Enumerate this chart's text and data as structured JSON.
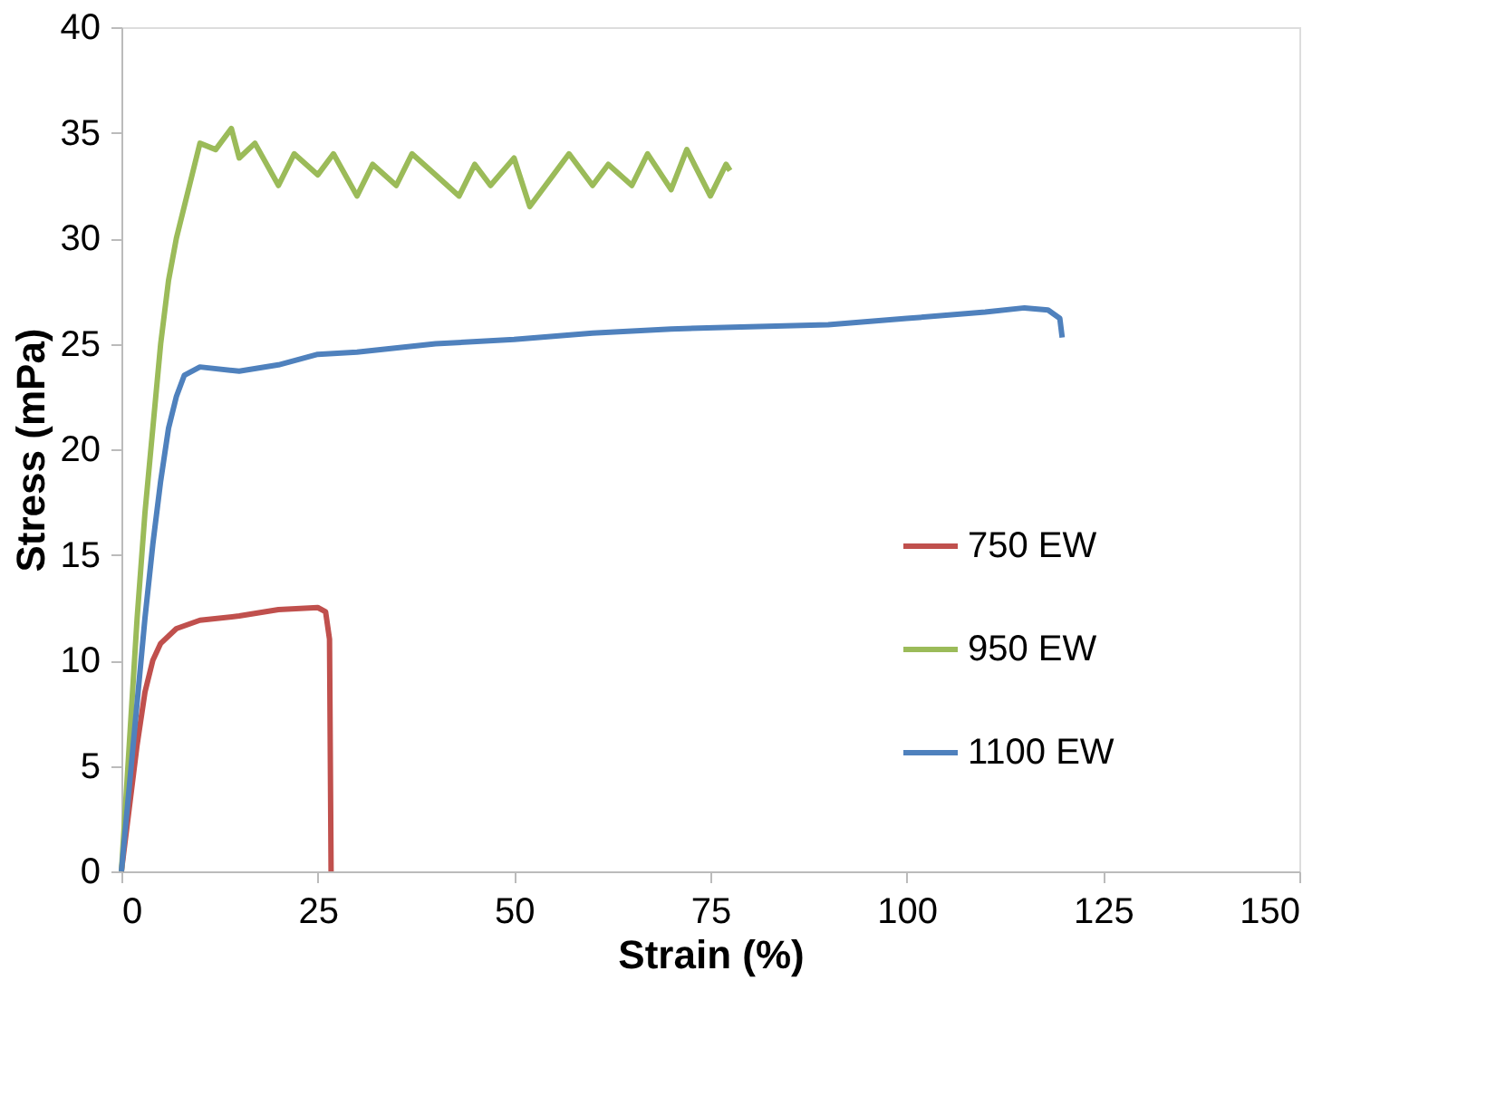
{
  "chart_data": {
    "type": "line",
    "xlabel": "Strain (%)",
    "ylabel": "Stress (mPa)",
    "xlim": [
      0,
      150
    ],
    "xticks": [
      0,
      25,
      50,
      75,
      100,
      125,
      150
    ],
    "ylim": [
      0,
      40
    ],
    "yticks": [
      0,
      5,
      10,
      15,
      20,
      25,
      30,
      35,
      40
    ],
    "grid": false,
    "legend": "right",
    "marker": "none",
    "line_style": "solid",
    "series": [
      {
        "name": "750 EW",
        "color": "#c0504d",
        "x": [
          0,
          1,
          2,
          3,
          4,
          5,
          7,
          10,
          15,
          20,
          25,
          26,
          26.5,
          26.7
        ],
        "values": [
          0,
          3,
          6,
          8.5,
          10,
          10.8,
          11.5,
          11.9,
          12.1,
          12.4,
          12.5,
          12.3,
          11,
          0
        ]
      },
      {
        "name": "950 EW",
        "color": "#9bbb59",
        "x": [
          0,
          1,
          2,
          3,
          4,
          5,
          6,
          7,
          8,
          9,
          10,
          12,
          14,
          15,
          17,
          20,
          22,
          25,
          27,
          30,
          32,
          35,
          37,
          40,
          43,
          45,
          47,
          50,
          52,
          55,
          57,
          60,
          62,
          65,
          67,
          70,
          72,
          75,
          77,
          77.5
        ],
        "values": [
          0,
          6,
          12,
          17,
          21,
          25,
          28,
          30,
          31.5,
          33,
          34.5,
          34.2,
          35.2,
          33.8,
          34.5,
          32.5,
          34,
          33,
          34,
          32,
          33.5,
          32.5,
          34,
          33,
          32,
          33.5,
          32.5,
          33.8,
          31.5,
          33,
          34,
          32.5,
          33.5,
          32.5,
          34,
          32.3,
          34.2,
          32,
          33.5,
          33.2
        ]
      },
      {
        "name": "1100 EW",
        "color": "#4f81bd",
        "x": [
          0,
          1,
          2,
          3,
          4,
          5,
          6,
          7,
          8,
          10,
          15,
          20,
          25,
          30,
          40,
          50,
          60,
          70,
          80,
          90,
          100,
          110,
          115,
          118,
          119.5,
          119.8
        ],
        "values": [
          0,
          4,
          8,
          12,
          15.5,
          18.5,
          21,
          22.5,
          23.5,
          23.9,
          23.7,
          24,
          24.5,
          24.6,
          25,
          25.2,
          25.5,
          25.7,
          25.8,
          25.9,
          26.2,
          26.5,
          26.7,
          26.6,
          26.2,
          25.3
        ]
      }
    ]
  }
}
